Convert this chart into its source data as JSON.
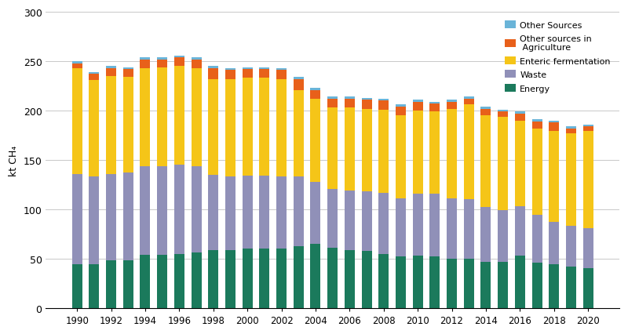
{
  "years": [
    1990,
    1991,
    1992,
    1993,
    1994,
    1995,
    1996,
    1997,
    1998,
    1999,
    2000,
    2001,
    2002,
    2003,
    2004,
    2005,
    2006,
    2007,
    2008,
    2009,
    2010,
    2011,
    2012,
    2013,
    2014,
    2015,
    2016,
    2017,
    2018,
    2019,
    2020
  ],
  "energy": [
    44,
    44,
    48,
    48,
    54,
    54,
    55,
    56,
    59,
    59,
    60,
    60,
    60,
    63,
    65,
    61,
    59,
    58,
    55,
    52,
    53,
    52,
    50,
    50,
    47,
    47,
    53,
    46,
    44,
    42,
    40
  ],
  "waste": [
    92,
    89,
    88,
    89,
    90,
    90,
    90,
    88,
    76,
    74,
    74,
    74,
    73,
    70,
    63,
    60,
    60,
    60,
    62,
    59,
    63,
    64,
    61,
    60,
    55,
    52,
    50,
    48,
    43,
    41,
    41
  ],
  "enteric": [
    107,
    98,
    99,
    97,
    99,
    100,
    100,
    99,
    97,
    99,
    99,
    99,
    99,
    88,
    84,
    82,
    84,
    84,
    84,
    84,
    84,
    83,
    91,
    96,
    93,
    95,
    87,
    88,
    92,
    94,
    98
  ],
  "other_agri": [
    5,
    6,
    8,
    8,
    9,
    8,
    9,
    9,
    11,
    9,
    9,
    9,
    9,
    11,
    9,
    9,
    9,
    9,
    9,
    9,
    9,
    8,
    7,
    6,
    7,
    5,
    7,
    7,
    9,
    5,
    5
  ],
  "other_sources": [
    2,
    2,
    2,
    2,
    2,
    2,
    2,
    2,
    2,
    2,
    2,
    2,
    2,
    2,
    2,
    2,
    2,
    2,
    2,
    2,
    2,
    2,
    2,
    2,
    2,
    2,
    2,
    2,
    2,
    2,
    2
  ],
  "colors": {
    "energy": "#1b7a5c",
    "waste": "#9090b8",
    "enteric": "#f5c518",
    "other_agri": "#e8601a",
    "other_sources": "#6ab4d8"
  },
  "ylabel": "kt CH₄",
  "ylim": [
    0,
    300
  ],
  "yticks": [
    0,
    50,
    100,
    150,
    200,
    250,
    300
  ],
  "legend_labels": [
    "Other Sources",
    "Other sources in\n Agriculture",
    "Enteric fermentation",
    "Waste",
    "Energy"
  ],
  "background_color": "#ffffff",
  "grid_color": "#c8c8c8"
}
